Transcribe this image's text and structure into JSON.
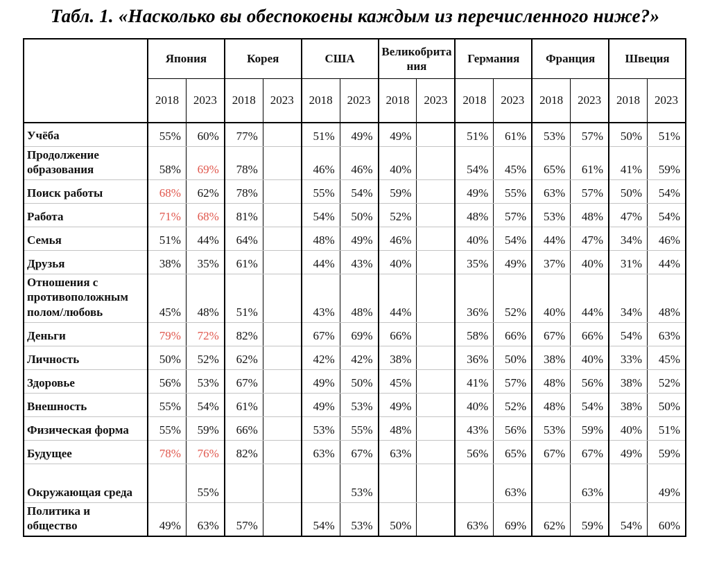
{
  "title": "Табл. 1. «Насколько вы обеспокоены каждым из перечисленного ниже?»",
  "colors": {
    "highlight_red": "#e0564c",
    "grid_black": "#000000",
    "grid_gray": "#c3c3c3"
  },
  "table": {
    "countries": [
      "Япония",
      "Корея",
      "США",
      "Великобритания",
      "Германия",
      "Франция",
      "Швеция"
    ],
    "years": [
      "2018",
      "2023"
    ],
    "rows": [
      {
        "label": "Учёба",
        "values": [
          "55%",
          "60%",
          "77%",
          "",
          "51%",
          "49%",
          "49%",
          "",
          "51%",
          "61%",
          "53%",
          "57%",
          "50%",
          "51%"
        ],
        "red_indices": []
      },
      {
        "label": "Продолжение образования",
        "values": [
          "58%",
          "69%",
          "78%",
          "",
          "46%",
          "46%",
          "40%",
          "",
          "54%",
          "45%",
          "65%",
          "61%",
          "41%",
          "59%"
        ],
        "red_indices": [
          1
        ]
      },
      {
        "label": "Поиск работы",
        "values": [
          "68%",
          "62%",
          "78%",
          "",
          "55%",
          "54%",
          "59%",
          "",
          "49%",
          "55%",
          "63%",
          "57%",
          "50%",
          "54%"
        ],
        "red_indices": [
          0
        ]
      },
      {
        "label": "Работа",
        "values": [
          "71%",
          "68%",
          "81%",
          "",
          "54%",
          "50%",
          "52%",
          "",
          "48%",
          "57%",
          "53%",
          "48%",
          "47%",
          "54%"
        ],
        "red_indices": [
          0,
          1
        ]
      },
      {
        "label": "Семья",
        "values": [
          "51%",
          "44%",
          "64%",
          "",
          "48%",
          "49%",
          "46%",
          "",
          "40%",
          "54%",
          "44%",
          "47%",
          "34%",
          "46%"
        ],
        "red_indices": []
      },
      {
        "label": "Друзья",
        "values": [
          "38%",
          "35%",
          "61%",
          "",
          "44%",
          "43%",
          "40%",
          "",
          "35%",
          "49%",
          "37%",
          "40%",
          "31%",
          "44%"
        ],
        "red_indices": []
      },
      {
        "label": "Отношения с противоположным полом/любовь",
        "values": [
          "45%",
          "48%",
          "51%",
          "",
          "43%",
          "48%",
          "44%",
          "",
          "36%",
          "52%",
          "40%",
          "44%",
          "34%",
          "48%"
        ],
        "red_indices": []
      },
      {
        "label": "Деньги",
        "values": [
          "79%",
          "72%",
          "82%",
          "",
          "67%",
          "69%",
          "66%",
          "",
          "58%",
          "66%",
          "67%",
          "66%",
          "54%",
          "63%"
        ],
        "red_indices": [
          0,
          1
        ]
      },
      {
        "label": "Личность",
        "values": [
          "50%",
          "52%",
          "62%",
          "",
          "42%",
          "42%",
          "38%",
          "",
          "36%",
          "50%",
          "38%",
          "40%",
          "33%",
          "45%"
        ],
        "red_indices": []
      },
      {
        "label": "Здоровье",
        "values": [
          "56%",
          "53%",
          "67%",
          "",
          "49%",
          "50%",
          "45%",
          "",
          "41%",
          "57%",
          "48%",
          "56%",
          "38%",
          "52%"
        ],
        "red_indices": []
      },
      {
        "label": "Внешность",
        "values": [
          "55%",
          "54%",
          "61%",
          "",
          "49%",
          "53%",
          "49%",
          "",
          "40%",
          "52%",
          "48%",
          "54%",
          "38%",
          "50%"
        ],
        "red_indices": []
      },
      {
        "label": "Физическая форма",
        "values": [
          "55%",
          "59%",
          "66%",
          "",
          "53%",
          "55%",
          "48%",
          "",
          "43%",
          "56%",
          "53%",
          "59%",
          "40%",
          "51%"
        ],
        "red_indices": []
      },
      {
        "label": "Будущее",
        "values": [
          "78%",
          "76%",
          "82%",
          "",
          "63%",
          "67%",
          "63%",
          "",
          "56%",
          "65%",
          "67%",
          "67%",
          "49%",
          "59%"
        ],
        "red_indices": [
          0,
          1
        ]
      },
      {
        "label": "Окружающая среда",
        "tall": true,
        "values": [
          "",
          "55%",
          "",
          "",
          "",
          "53%",
          "",
          "",
          "",
          "63%",
          "",
          "63%",
          "",
          "49%"
        ],
        "red_indices": []
      },
      {
        "label": "Политика и общество",
        "values": [
          "49%",
          "63%",
          "57%",
          "",
          "54%",
          "53%",
          "50%",
          "",
          "63%",
          "69%",
          "62%",
          "59%",
          "54%",
          "60%"
        ],
        "red_indices": []
      }
    ]
  }
}
